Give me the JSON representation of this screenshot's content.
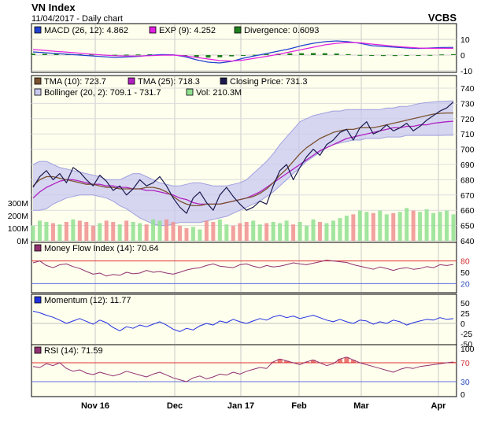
{
  "chart_data": {
    "type": "line",
    "title": "VN Index",
    "subtitle": "11/04/2017 - Daily chart",
    "brand": "VCBS",
    "months": [
      "Nov 16",
      "Dec",
      "Jan 17",
      "Feb",
      "Mar",
      "Apr"
    ],
    "colors": {
      "panel_bg": "#ffffee",
      "close": "#1a1a50",
      "tma10": "#7a5230",
      "tma25": "#b020c0",
      "bollinger_fill": "#c8c8f0",
      "bollinger_line": "#a0a0e0",
      "vol_up": "#90e090",
      "vol_down": "#f09090",
      "macd": "#2040d0",
      "exp": "#e020e0",
      "divergence": "#208020",
      "mfi": "#903070",
      "momentum": "#2030e0",
      "rsi": "#903070",
      "overbought": "#e03030",
      "oversold": "#6070e0"
    },
    "panels": [
      {
        "id": "macd",
        "ylim": [
          -10,
          12
        ],
        "ticks": [
          10,
          0,
          -10
        ],
        "legend": [
          {
            "label": "MACD (26, 12): 4.862",
            "icon": "blue-square"
          },
          {
            "label": "EXP (9): 4.252",
            "icon": "magenta-square"
          },
          {
            "label": "Divergence: 0.6093",
            "icon": "green-square"
          }
        ],
        "series": [
          {
            "name": "MACD",
            "color_key": "macd",
            "values": [
              2,
              1.5,
              1,
              0.5,
              0,
              -0.5,
              -1,
              -1.5,
              -1.2,
              -0.8,
              -0.2,
              0.3,
              0.2,
              -1,
              -3,
              -4.5,
              -5,
              -4,
              -2,
              -0.5,
              1,
              2.5,
              4,
              6,
              7.5,
              8.5,
              9,
              8.5,
              7.5,
              6,
              5.5,
              5,
              4.5,
              4.2,
              4.5,
              4.8,
              4.9
            ]
          },
          {
            "name": "EXP",
            "color_key": "exp",
            "values": [
              3.5,
              3,
              2.3,
              1.8,
              1.2,
              0.6,
              0,
              -0.4,
              -0.6,
              -0.6,
              -0.4,
              -0.1,
              0,
              -0.5,
              -1.5,
              -2.5,
              -3.5,
              -3.8,
              -3.2,
              -2,
              -0.8,
              0.5,
              2,
              3.5,
              5,
              6.5,
              7.5,
              8,
              7.8,
              7,
              6.3,
              5.6,
              5,
              4.5,
              4.3,
              4.3,
              4.3
            ]
          }
        ],
        "divergence": [
          0.9,
          0.8,
          0.7,
          0.6,
          0.5,
          0.4,
          0.3,
          0.2,
          0.3,
          0.4,
          0.5,
          0.5,
          0.3,
          -0.4,
          -1.2,
          -1.6,
          -1.4,
          -0.8,
          -0.3,
          0.2,
          0.6,
          0.9,
          1.1,
          1.2,
          1.3,
          1.2,
          1.0,
          0.6,
          0.1,
          -0.4,
          -0.6,
          -0.6,
          -0.5,
          -0.3,
          0.1,
          0.4,
          0.6
        ]
      },
      {
        "id": "price",
        "ylim": [
          640,
          740
        ],
        "ticks": [
          740,
          730,
          720,
          710,
          700,
          690,
          680,
          670,
          660,
          650,
          640
        ],
        "vol_ticks": [
          "300M",
          "200M",
          "100M",
          "0M"
        ],
        "vol_values_m": [
          300,
          200,
          100,
          0
        ],
        "legend": [
          {
            "label": "TMA (10): 723.7",
            "icon": "brown-square"
          },
          {
            "label": "TMA (25): 718.3",
            "icon": "purple-square"
          },
          {
            "label": "Closing Price: 731.3",
            "icon": "navy-square"
          },
          {
            "label": "Bollinger (20, 2): 709.1 - 731.7",
            "icon": "lavender-square"
          },
          {
            "label": "Vol: 210.3M",
            "icon": "lightgreen-square"
          }
        ],
        "close": [
          675,
          682,
          686,
          680,
          684,
          678,
          688,
          685,
          680,
          676,
          683,
          679,
          673,
          676,
          670,
          674,
          680,
          676,
          678,
          682,
          676,
          668,
          662,
          658,
          668,
          672,
          665,
          660,
          670,
          675,
          669,
          664,
          660,
          662,
          666,
          664,
          676,
          686,
          690,
          680,
          688,
          695,
          700,
          696,
          703,
          706,
          711,
          713,
          706,
          714,
          718,
          710,
          712,
          716,
          712,
          714,
          717,
          712,
          715,
          719,
          722,
          725,
          727,
          731
        ],
        "tma10": [
          676,
          680,
          682,
          682,
          681,
          680,
          679,
          678,
          677,
          677,
          676,
          675,
          675,
          674,
          674,
          674,
          674,
          675,
          675,
          674,
          672,
          669,
          666,
          664,
          663,
          663,
          664,
          664,
          664,
          665,
          666,
          667,
          668,
          669,
          671,
          674,
          678,
          683,
          687,
          692,
          697,
          701,
          704,
          707,
          709,
          711,
          712,
          713,
          713,
          714,
          714,
          714,
          715,
          716,
          717,
          718,
          719,
          720,
          721,
          722,
          723,
          723.5,
          723.7,
          723.7
        ],
        "tma25": [
          668,
          672,
          675,
          677,
          679,
          680,
          680,
          679,
          678,
          677,
          677,
          676,
          676,
          675,
          675,
          674,
          674,
          673,
          673,
          672,
          671,
          670,
          668,
          667,
          665,
          664,
          664,
          664,
          664,
          665,
          666,
          667,
          668,
          670,
          672,
          675,
          678,
          681,
          684,
          687,
          690,
          693,
          696,
          699,
          701,
          703,
          705,
          707,
          708,
          709,
          710,
          711,
          712,
          713,
          714,
          714,
          715,
          715,
          716,
          716,
          717,
          717.5,
          718,
          718.3
        ],
        "bb_upper": [
          690,
          692,
          692,
          690,
          688,
          687,
          686,
          685,
          684,
          683,
          682,
          680,
          680,
          680,
          682,
          684,
          684,
          682,
          680,
          678,
          677,
          676,
          676,
          677,
          678,
          678,
          677,
          676,
          676,
          676,
          677,
          678,
          680,
          684,
          688,
          692,
          697,
          703,
          708,
          713,
          718,
          720,
          722,
          723,
          724,
          725,
          725,
          726,
          726,
          726,
          726,
          726,
          726,
          727,
          727,
          728,
          728,
          729,
          730,
          730.5,
          731,
          731.3,
          731.5,
          731.7
        ],
        "bb_lower": [
          660,
          660,
          661,
          664,
          666,
          668,
          669,
          670,
          670,
          670,
          669,
          668,
          666,
          663,
          661,
          658,
          655,
          653,
          651,
          650,
          650,
          651,
          652,
          652,
          652,
          652,
          653,
          654,
          655,
          656,
          658,
          660,
          662,
          664,
          666,
          669,
          672,
          676,
          680,
          684,
          688,
          692,
          695,
          698,
          701,
          703,
          704,
          705,
          706,
          706,
          707,
          707,
          707,
          708,
          708,
          708,
          709,
          709,
          709,
          709,
          709,
          709,
          709.1,
          709.1
        ],
        "volume_m": [
          120,
          160,
          150,
          140,
          130,
          150,
          170,
          160,
          150,
          120,
          140,
          160,
          150,
          130,
          160,
          150,
          140,
          130,
          170,
          160,
          170,
          150,
          120,
          100,
          110,
          90,
          160,
          150,
          170,
          130,
          120,
          140,
          150,
          160,
          130,
          140,
          150,
          140,
          160,
          130,
          150,
          120,
          170,
          150,
          140,
          160,
          180,
          200,
          210,
          240,
          230,
          220,
          240,
          210,
          220,
          230,
          260,
          240,
          230,
          250,
          220,
          230,
          240,
          210
        ]
      },
      {
        "id": "mfi",
        "ylim": [
          0,
          100
        ],
        "ticks": [
          80,
          50,
          20
        ],
        "overbought": 80,
        "oversold": 20,
        "legend": [
          {
            "label": "Money Flow Index (14): 70.64",
            "icon": "maroon-square"
          }
        ],
        "values": [
          75,
          80,
          68,
          62,
          70,
          72,
          65,
          60,
          52,
          45,
          48,
          40,
          44,
          42,
          50,
          46,
          48,
          55,
          50,
          52,
          48,
          45,
          50,
          56,
          60,
          62,
          68,
          72,
          66,
          64,
          62,
          70,
          72,
          66,
          62,
          68,
          64,
          66,
          70,
          75,
          72,
          70,
          74,
          78,
          82,
          80,
          78,
          76,
          70,
          66,
          62,
          58,
          64,
          60,
          55,
          60,
          62,
          58,
          60,
          65,
          62,
          70,
          68,
          70.64
        ]
      },
      {
        "id": "momentum",
        "ylim": [
          -50,
          50
        ],
        "ticks": [
          50,
          25,
          0,
          -25,
          -50
        ],
        "legend": [
          {
            "label": "Momentum (12): 11.77",
            "icon": "blue-square"
          }
        ],
        "values": [
          30,
          26,
          20,
          15,
          8,
          0,
          6,
          12,
          5,
          -2,
          8,
          2,
          -10,
          -18,
          -8,
          -12,
          -4,
          -8,
          -2,
          4,
          -4,
          -14,
          -20,
          -12,
          -16,
          -6,
          0,
          -4,
          6,
          2,
          10,
          4,
          0,
          6,
          12,
          8,
          16,
          20,
          14,
          18,
          12,
          16,
          20,
          14,
          8,
          4,
          10,
          4,
          0,
          8,
          6,
          -2,
          4,
          0,
          8,
          4,
          -4,
          2,
          6,
          10,
          8,
          14,
          10,
          11.77
        ]
      },
      {
        "id": "rsi",
        "ylim": [
          0,
          100
        ],
        "ticks": [
          100,
          70,
          30,
          0
        ],
        "overbought": 70,
        "oversold": 30,
        "legend": [
          {
            "label": "RSI (14): 71.59",
            "icon": "maroon-square"
          }
        ],
        "values": [
          62,
          60,
          68,
          64,
          70,
          58,
          52,
          55,
          48,
          45,
          50,
          46,
          42,
          46,
          52,
          48,
          44,
          40,
          46,
          50,
          44,
          38,
          34,
          30,
          38,
          42,
          36,
          40,
          46,
          44,
          50,
          46,
          52,
          56,
          60,
          58,
          72,
          78,
          74,
          70,
          66,
          72,
          76,
          70,
          64,
          68,
          78,
          82,
          76,
          70,
          66,
          62,
          58,
          54,
          50,
          56,
          60,
          58,
          62,
          64,
          66,
          68,
          70,
          71.59
        ]
      }
    ]
  }
}
